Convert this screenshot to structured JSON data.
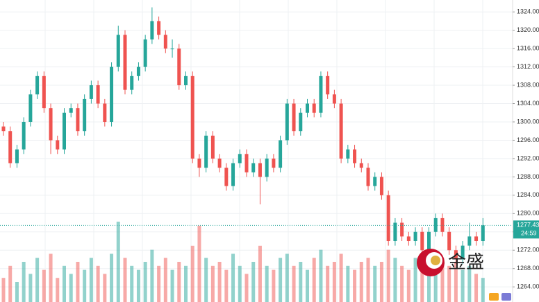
{
  "chart_data": {
    "type": "candlestick",
    "ylim": [
      1260.7,
      1326.6
    ],
    "yticks": [
      {
        "value": 1264,
        "label": "1264.00"
      },
      {
        "value": 1268,
        "label": "1268.00"
      },
      {
        "value": 1272,
        "label": "1272.00"
      },
      {
        "value": 1276,
        "label": "1276.00"
      },
      {
        "value": 1280,
        "label": "1280.00"
      },
      {
        "value": 1284,
        "label": "1284.00"
      },
      {
        "value": 1288,
        "label": "1288.00"
      },
      {
        "value": 1292,
        "label": "1292.00"
      },
      {
        "value": 1296,
        "label": "1296.00"
      },
      {
        "value": 1300,
        "label": "1300.00"
      },
      {
        "value": 1304,
        "label": "1304.00"
      },
      {
        "value": 1308,
        "label": "1308.00"
      },
      {
        "value": 1312,
        "label": "1312.00"
      },
      {
        "value": 1316,
        "label": "1316.00"
      },
      {
        "value": 1320,
        "label": "1320.00"
      },
      {
        "value": 1324,
        "label": "1324.00"
      }
    ],
    "grid": true,
    "up_color": "#26a69a",
    "down_color": "#ef5350",
    "open": [
      1299,
      1298,
      1291,
      1294,
      1300,
      1306,
      1310,
      1303,
      1296,
      1294,
      1302,
      1303,
      1298,
      1305,
      1308,
      1304,
      1300,
      1312,
      1319,
      1307,
      1310,
      1312,
      1318,
      1322,
      1319,
      1316,
      1316,
      1308,
      1310,
      1292,
      1290,
      1297,
      1292,
      1290,
      1286,
      1291,
      1293,
      1289,
      1291,
      1288,
      1292,
      1290,
      1296,
      1304,
      1298,
      1302,
      1304,
      1302,
      1310,
      1306,
      1304,
      1292,
      1294,
      1291,
      1290,
      1286,
      1288,
      1284,
      1274,
      1278,
      1275,
      1274,
      1276,
      1272,
      1276,
      1279,
      1276,
      1272,
      1270,
      1273,
      1275,
      1274
    ],
    "high": [
      1300,
      1299,
      1295,
      1301,
      1307,
      1311,
      1311,
      1304,
      1297,
      1303,
      1304,
      1304,
      1306,
      1309,
      1309,
      1305,
      1313,
      1321,
      1320,
      1311,
      1313,
      1319,
      1325,
      1323,
      1320,
      1318,
      1317,
      1311,
      1311,
      1293,
      1298,
      1298,
      1293,
      1291,
      1292,
      1294,
      1294,
      1292,
      1292,
      1293,
      1293,
      1297,
      1305,
      1305,
      1303,
      1305,
      1305,
      1311,
      1311,
      1307,
      1305,
      1295,
      1295,
      1292,
      1291,
      1289,
      1289,
      1285,
      1279,
      1279,
      1276,
      1277,
      1277,
      1277,
      1280,
      1280,
      1277,
      1273,
      1274,
      1278,
      1276,
      1279
    ],
    "low": [
      1297,
      1290,
      1290,
      1293,
      1299,
      1305,
      1302,
      1293,
      1293,
      1293,
      1301,
      1297,
      1297,
      1304,
      1303,
      1299,
      1299,
      1311,
      1306,
      1306,
      1309,
      1311,
      1317,
      1318,
      1315,
      1314,
      1307,
      1307,
      1291,
      1288,
      1289,
      1291,
      1289,
      1285,
      1285,
      1290,
      1288,
      1288,
      1282,
      1287,
      1289,
      1289,
      1295,
      1297,
      1297,
      1301,
      1301,
      1301,
      1305,
      1303,
      1291,
      1291,
      1290,
      1289,
      1285,
      1285,
      1283,
      1273,
      1273,
      1274,
      1273,
      1273,
      1271,
      1271,
      1275,
      1275,
      1271,
      1269,
      1269,
      1272,
      1273,
      1273
    ],
    "close": [
      1298,
      1291,
      1294,
      1300,
      1306,
      1310,
      1303,
      1296,
      1294,
      1302,
      1303,
      1298,
      1305,
      1308,
      1304,
      1300,
      1312,
      1319,
      1307,
      1310,
      1312,
      1318,
      1322,
      1319,
      1316,
      1316,
      1308,
      1310,
      1292,
      1290,
      1297,
      1292,
      1290,
      1286,
      1291,
      1293,
      1289,
      1291,
      1288,
      1292,
      1290,
      1296,
      1304,
      1298,
      1302,
      1304,
      1302,
      1310,
      1306,
      1304,
      1292,
      1294,
      1291,
      1290,
      1286,
      1288,
      1284,
      1274,
      1278,
      1275,
      1274,
      1276,
      1272,
      1276,
      1279,
      1276,
      1272,
      1270,
      1273,
      1275,
      1274,
      1277.43
    ],
    "volume": [
      30,
      45,
      25,
      50,
      35,
      55,
      40,
      60,
      30,
      45,
      35,
      50,
      40,
      55,
      45,
      35,
      60,
      100,
      55,
      45,
      40,
      50,
      65,
      45,
      55,
      40,
      50,
      45,
      70,
      95,
      55,
      45,
      50,
      40,
      60,
      45,
      35,
      50,
      70,
      45,
      40,
      55,
      60,
      45,
      50,
      40,
      55,
      65,
      45,
      50,
      60,
      45,
      40,
      50,
      55,
      45,
      50,
      65,
      55,
      45,
      40,
      55,
      50,
      45,
      40,
      55,
      45,
      50,
      40,
      45,
      35,
      30
    ],
    "last_price": 1277.43,
    "countdown": "24:59",
    "watermark": "金盛"
  }
}
